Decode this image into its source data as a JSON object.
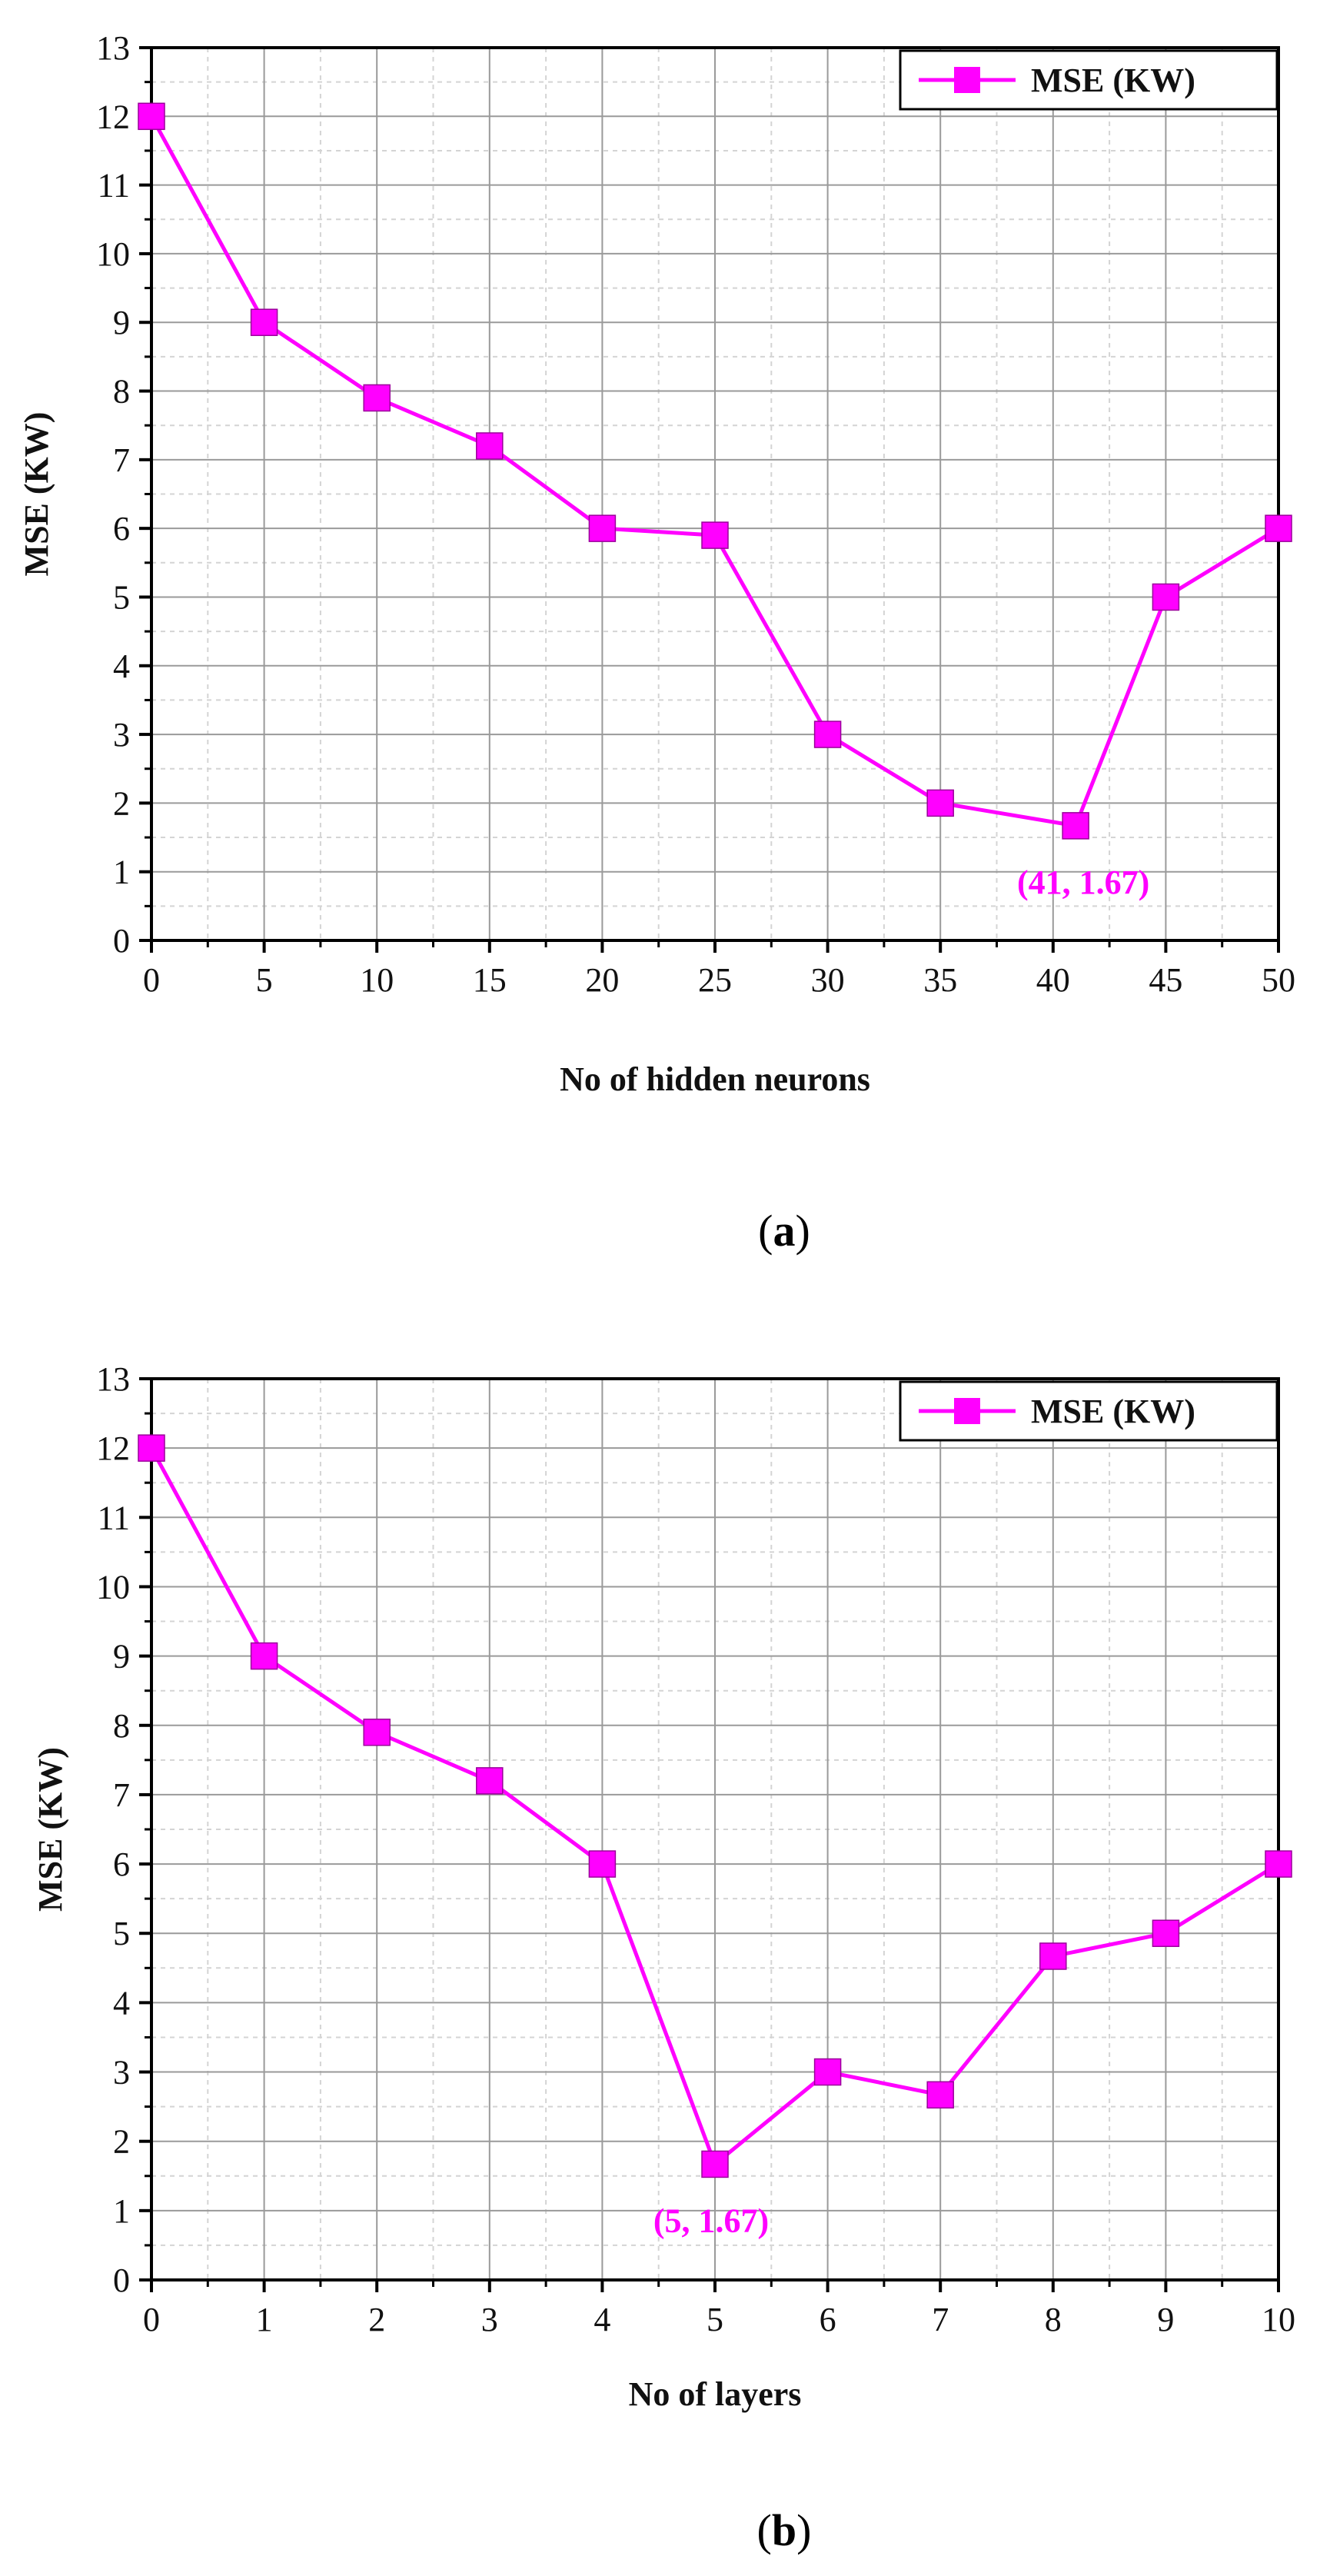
{
  "chart_data": [
    {
      "type": "line",
      "panel_label": "a",
      "xlabel": "No of hidden neurons",
      "ylabel": "MSE (KW)",
      "xlim": [
        0,
        50
      ],
      "ylim": [
        0,
        13
      ],
      "xticks": [
        0,
        5,
        10,
        15,
        20,
        25,
        30,
        35,
        40,
        45,
        50
      ],
      "yticks": [
        0,
        1,
        2,
        3,
        4,
        5,
        6,
        7,
        8,
        9,
        10,
        11,
        12,
        13
      ],
      "grid": true,
      "legend_position": "top-right",
      "series": [
        {
          "name": "MSE (KW)",
          "color": "#ff00ff",
          "marker": "square",
          "x": [
            0,
            5,
            10,
            15,
            20,
            25,
            30,
            35,
            41,
            45,
            50
          ],
          "y": [
            12,
            9,
            7.9,
            7.2,
            6,
            5.9,
            3,
            2,
            1.67,
            5,
            6
          ]
        }
      ],
      "annotations": [
        {
          "text": "(41, 1.67)",
          "x": 41,
          "y": 1.67,
          "color": "#ff00ff"
        }
      ]
    },
    {
      "type": "line",
      "panel_label": "b",
      "xlabel": "No of layers",
      "ylabel": "MSE (KW)",
      "xlim": [
        0,
        10
      ],
      "ylim": [
        0,
        13
      ],
      "xticks": [
        0,
        1,
        2,
        3,
        4,
        5,
        6,
        7,
        8,
        9,
        10
      ],
      "yticks": [
        0,
        1,
        2,
        3,
        4,
        5,
        6,
        7,
        8,
        9,
        10,
        11,
        12,
        13
      ],
      "grid": true,
      "legend_position": "top-right",
      "series": [
        {
          "name": "MSE (KW)",
          "color": "#ff00ff",
          "marker": "square",
          "x": [
            0,
            1,
            2,
            3,
            4,
            5,
            6,
            7,
            8,
            9,
            10
          ],
          "y": [
            12,
            9,
            7.9,
            7.2,
            6,
            1.67,
            3,
            2.67,
            4.67,
            5,
            6
          ]
        }
      ],
      "annotations": [
        {
          "text": "(5, 1.67)",
          "x": 5,
          "y": 1.67,
          "color": "#ff00ff"
        }
      ]
    }
  ]
}
